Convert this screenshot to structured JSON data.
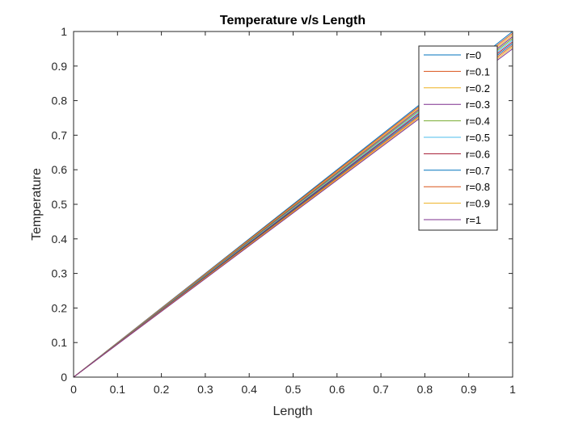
{
  "chart_data": {
    "type": "line",
    "title": "Temperature v/s Length",
    "xlabel": "Length",
    "ylabel": "Temperature",
    "xlim": [
      0,
      1
    ],
    "ylim": [
      0,
      1
    ],
    "xticks": [
      "0",
      "0.1",
      "0.2",
      "0.3",
      "0.4",
      "0.5",
      "0.6",
      "0.7",
      "0.8",
      "0.9",
      "1"
    ],
    "yticks": [
      "0",
      "0.1",
      "0.2",
      "0.3",
      "0.4",
      "0.5",
      "0.6",
      "0.7",
      "0.8",
      "0.9",
      "1"
    ],
    "grid": false,
    "legend_position": "top-right",
    "series": [
      {
        "name": "r=0",
        "color": "#0072BD",
        "x": [
          0,
          1
        ],
        "y": [
          0,
          1.0
        ]
      },
      {
        "name": "r=0.1",
        "color": "#D95319",
        "x": [
          0,
          1
        ],
        "y": [
          0,
          0.995
        ]
      },
      {
        "name": "r=0.2",
        "color": "#EDB120",
        "x": [
          0,
          1
        ],
        "y": [
          0,
          0.99
        ]
      },
      {
        "name": "r=0.3",
        "color": "#7E2F8E",
        "x": [
          0,
          1
        ],
        "y": [
          0,
          0.985
        ]
      },
      {
        "name": "r=0.4",
        "color": "#77AC30",
        "x": [
          0,
          1
        ],
        "y": [
          0,
          0.98
        ]
      },
      {
        "name": "r=0.5",
        "color": "#4DBEEE",
        "x": [
          0,
          1
        ],
        "y": [
          0,
          0.975
        ]
      },
      {
        "name": "r=0.6",
        "color": "#A2142F",
        "x": [
          0,
          1
        ],
        "y": [
          0,
          0.97
        ]
      },
      {
        "name": "r=0.7",
        "color": "#0072BD",
        "x": [
          0,
          1
        ],
        "y": [
          0,
          0.965
        ]
      },
      {
        "name": "r=0.8",
        "color": "#D95319",
        "x": [
          0,
          1
        ],
        "y": [
          0,
          0.96
        ]
      },
      {
        "name": "r=0.9",
        "color": "#EDB120",
        "x": [
          0,
          1
        ],
        "y": [
          0,
          0.955
        ]
      },
      {
        "name": "r=1",
        "color": "#7E2F8E",
        "x": [
          0,
          1
        ],
        "y": [
          0,
          0.95
        ]
      }
    ]
  }
}
